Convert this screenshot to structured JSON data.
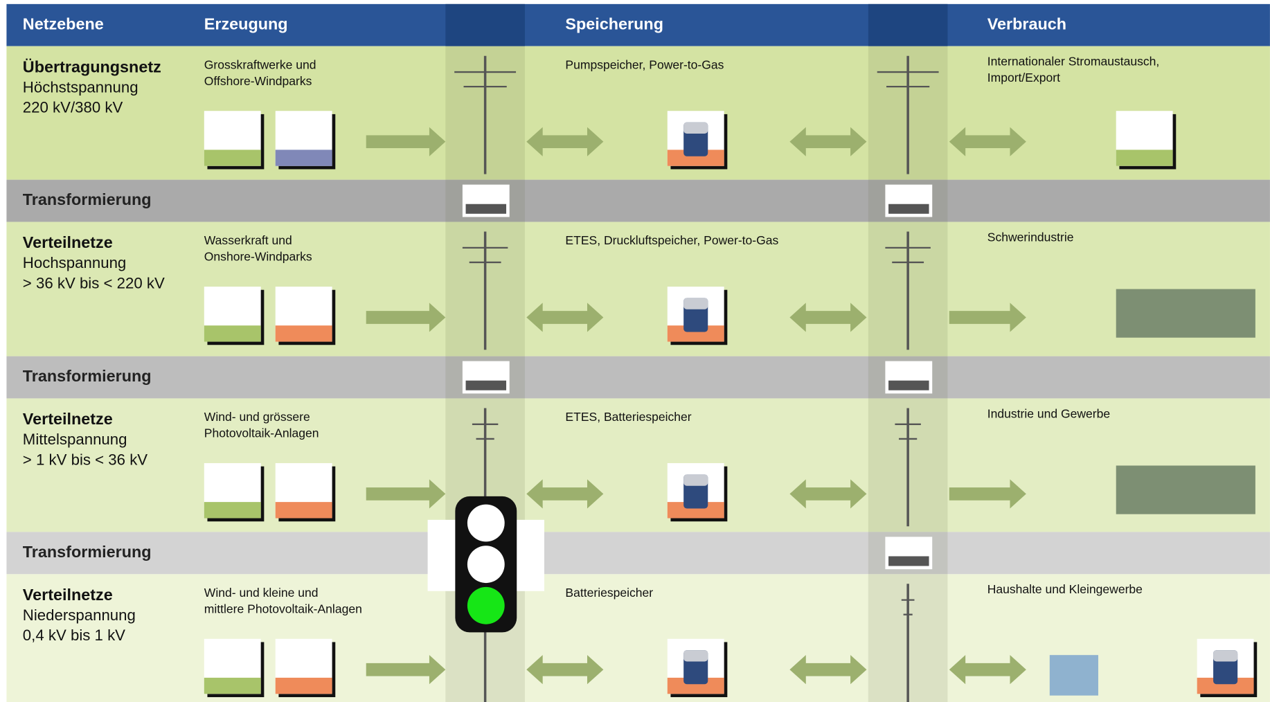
{
  "header": {
    "columns": [
      "Netzebene",
      "Erzeugung",
      "Speicherung",
      "Verbrauch"
    ]
  },
  "levels": [
    {
      "name": "Übertragungsnetz",
      "voltage": [
        "Höchstspannung",
        "220 kV/380 kV"
      ],
      "generation": [
        "Grosskraftwerke und",
        "Offshore-Windparks"
      ],
      "storage": [
        "Pumpspeicher, Power-to-Gas"
      ],
      "consumption": [
        "Internationaler Stromaustausch,",
        "Import/Export"
      ]
    },
    {
      "name": "Verteilnetze",
      "voltage": [
        "Hochspannung",
        "> 36 kV bis < 220 kV"
      ],
      "generation": [
        "Wasserkraft und",
        "Onshore-Windparks"
      ],
      "storage": [
        "ETES, Druckluftspeicher, Power-to-Gas"
      ],
      "consumption": [
        "Schwerindustrie"
      ]
    },
    {
      "name": "Verteilnetze",
      "voltage": [
        "Mittelspannung",
        "> 1 kV bis < 36 kV"
      ],
      "generation": [
        "Wind- und grössere",
        "Photovoltaik-Anlagen"
      ],
      "storage": [
        "ETES, Batteriespeicher"
      ],
      "consumption": [
        "Industrie und Gewerbe"
      ]
    },
    {
      "name": "Verteilnetze",
      "voltage": [
        "Niederspannung",
        "0,4 kV bis 1 kV"
      ],
      "generation": [
        "Wind- und kleine und",
        "mittlere Photovoltaik-Anlagen"
      ],
      "storage": [
        "Batteriespeicher"
      ],
      "consumption": [
        "Haushalte und Kleingewerbe"
      ]
    }
  ],
  "transformations": [
    "Transformierung",
    "Transformierung",
    "Transformierung"
  ]
}
